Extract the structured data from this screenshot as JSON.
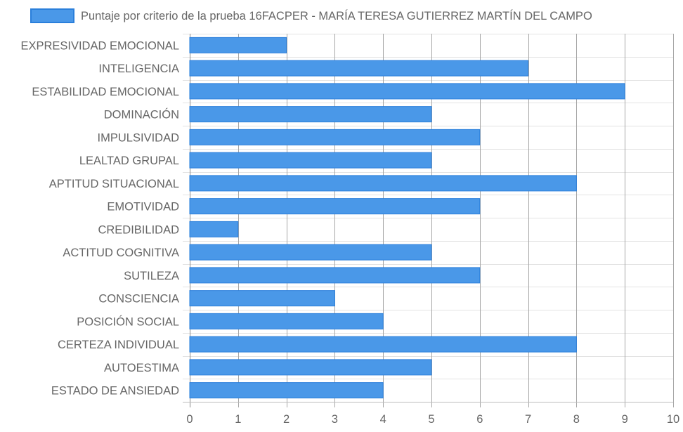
{
  "chart_data": {
    "type": "bar",
    "orientation": "horizontal",
    "categories": [
      "EXPRESIVIDAD EMOCIONAL",
      "INTELIGENCIA",
      "ESTABILIDAD EMOCIONAL",
      "DOMINACIÓN",
      "IMPULSIVIDAD",
      "LEALTAD GRUPAL",
      "APTITUD SITUACIONAL",
      "EMOTIVIDAD",
      "CREDIBILIDAD",
      "ACTITUD COGNITIVA",
      "SUTILEZA",
      "CONSCIENCIA",
      "POSICIÓN SOCIAL",
      "CERTEZA INDIVIDUAL",
      "AUTOESTIMA",
      "ESTADO DE ANSIEDAD"
    ],
    "series": [
      {
        "name": "Puntaje por criterio de la prueba 16FACPER - MARÍA TERESA GUTIERREZ MARTÍN DEL CAMPO",
        "values": [
          2,
          7,
          9,
          5,
          6,
          5,
          8,
          6,
          1,
          5,
          6,
          3,
          4,
          8,
          5,
          4
        ],
        "color": "#4a98e8",
        "border_color": "#2a7fdb"
      }
    ],
    "xlim": [
      0,
      10
    ],
    "x_ticks": [
      "0",
      "1",
      "2",
      "3",
      "4",
      "5",
      "6",
      "7",
      "8",
      "9",
      "10"
    ],
    "grid": true,
    "legend_position": "top"
  }
}
